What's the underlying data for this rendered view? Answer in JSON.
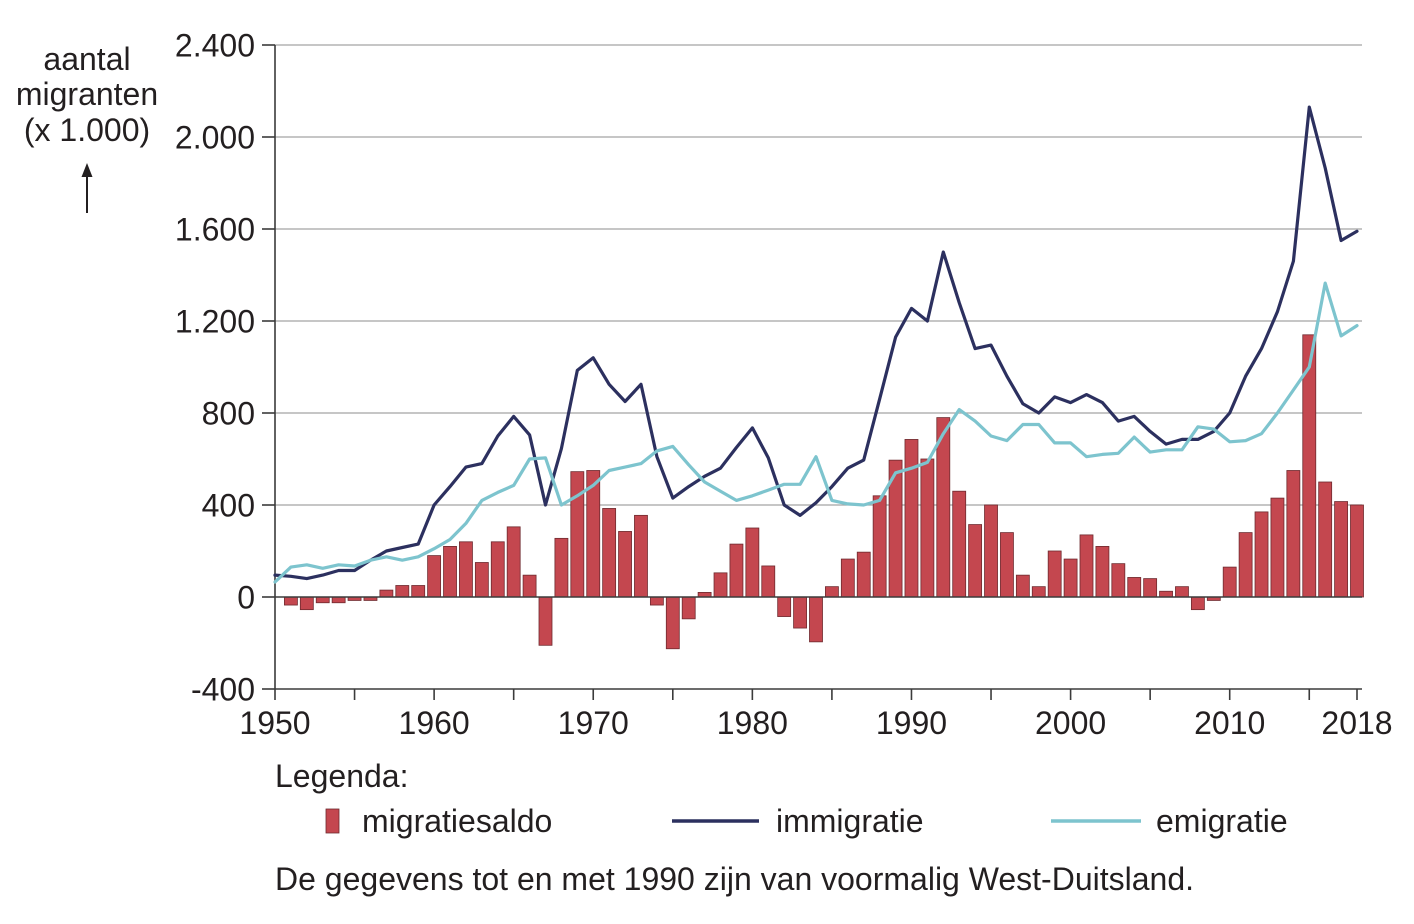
{
  "chart_data": {
    "type": "bar",
    "title": "",
    "xlabel": "",
    "ylabel": [
      "aantal",
      "migranten",
      "(x 1.000)"
    ],
    "xlim": [
      1950,
      2018
    ],
    "ylim": [
      -400,
      2400
    ],
    "grid": true,
    "y_ticks": [
      2400,
      2000,
      1600,
      1200,
      800,
      400,
      0,
      -400
    ],
    "y_tick_labels": [
      "2.400",
      "2.000",
      "1.600",
      "1.200",
      "800",
      "400",
      "0",
      "-400"
    ],
    "x_ticks": [
      1950,
      1955,
      1960,
      1965,
      1970,
      1975,
      1980,
      1985,
      1990,
      1995,
      2000,
      2005,
      2010,
      2015,
      2018
    ],
    "x_labeled_ticks": [
      1950,
      1960,
      1970,
      1980,
      1990,
      2000,
      2010,
      2018
    ],
    "x_tick_labels": [
      "1950",
      "1960",
      "1970",
      "1980",
      "1990",
      "2000",
      "2010",
      "2018"
    ],
    "x": [
      1950,
      1951,
      1952,
      1953,
      1954,
      1955,
      1956,
      1957,
      1958,
      1959,
      1960,
      1961,
      1962,
      1963,
      1964,
      1965,
      1966,
      1967,
      1968,
      1969,
      1970,
      1971,
      1972,
      1973,
      1974,
      1975,
      1976,
      1977,
      1978,
      1979,
      1980,
      1981,
      1982,
      1983,
      1984,
      1985,
      1986,
      1987,
      1988,
      1989,
      1990,
      1991,
      1992,
      1993,
      1994,
      1995,
      1996,
      1997,
      1998,
      1999,
      2000,
      2001,
      2002,
      2003,
      2004,
      2005,
      2006,
      2007,
      2008,
      2009,
      2010,
      2011,
      2012,
      2013,
      2014,
      2015,
      2016,
      2017,
      2018
    ],
    "series": [
      {
        "name": "migratiesaldo",
        "type": "bar",
        "color": "#c4474f",
        "values": [
          null,
          -35,
          -55,
          -25,
          -25,
          -15,
          -15,
          30,
          50,
          50,
          180,
          220,
          240,
          150,
          240,
          305,
          95,
          -210,
          255,
          545,
          550,
          385,
          285,
          355,
          -35,
          -225,
          -95,
          20,
          105,
          230,
          300,
          135,
          -85,
          -135,
          -195,
          45,
          165,
          195,
          440,
          595,
          685,
          600,
          780,
          460,
          315,
          400,
          280,
          95,
          45,
          200,
          165,
          270,
          220,
          145,
          85,
          80,
          25,
          45,
          -55,
          -15,
          130,
          280,
          370,
          430,
          550,
          1140,
          500,
          415,
          400
        ]
      },
      {
        "name": "immigratie",
        "type": "line",
        "color": "#2c305f",
        "values": [
          95,
          90,
          80,
          95,
          115,
          115,
          160,
          200,
          215,
          230,
          400,
          480,
          565,
          580,
          700,
          785,
          705,
          400,
          645,
          985,
          1040,
          925,
          850,
          925,
          610,
          430,
          480,
          525,
          560,
          650,
          735,
          605,
          400,
          355,
          410,
          480,
          560,
          595,
          860,
          1130,
          1255,
          1200,
          1500,
          1280,
          1080,
          1095,
          960,
          840,
          800,
          870,
          845,
          880,
          845,
          765,
          785,
          720,
          665,
          685,
          685,
          720,
          800,
          960,
          1080,
          1240,
          1460,
          2130,
          1865,
          1550,
          1590
        ]
      },
      {
        "name": "emigratie",
        "type": "line",
        "color": "#7dc4ce",
        "values": [
          65,
          130,
          140,
          125,
          140,
          135,
          160,
          175,
          160,
          175,
          210,
          250,
          320,
          420,
          455,
          485,
          600,
          605,
          400,
          440,
          485,
          550,
          565,
          580,
          635,
          655,
          575,
          500,
          460,
          420,
          440,
          465,
          490,
          490,
          610,
          420,
          405,
          400,
          420,
          540,
          560,
          585,
          710,
          815,
          765,
          700,
          680,
          750,
          750,
          670,
          670,
          610,
          620,
          625,
          695,
          630,
          640,
          640,
          740,
          730,
          675,
          680,
          710,
          800,
          900,
          1000,
          1365,
          1135,
          1180
        ]
      }
    ],
    "legend": {
      "title": "Legenda:",
      "position": "bottom"
    },
    "note": "De gegevens tot en met 1990 zijn van voormalig West-Duitsland."
  }
}
